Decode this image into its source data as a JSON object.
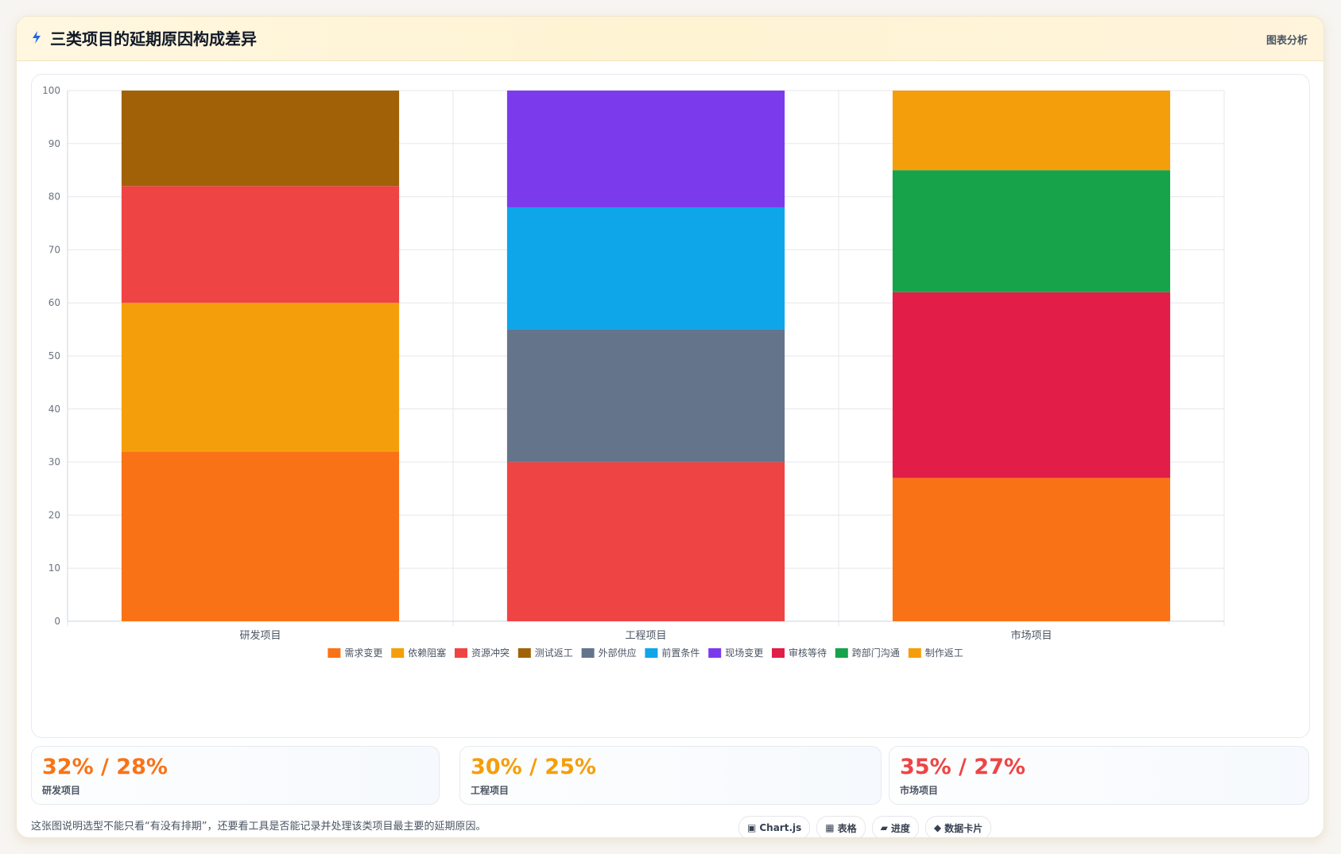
{
  "header": {
    "title_icon": "lightning-icon",
    "title": "三类项目的延期原因构成差异",
    "link_label": "图表分析"
  },
  "chart_data": {
    "type": "bar",
    "stacked": true,
    "categories": [
      "研发项目",
      "工程项目",
      "市场项目"
    ],
    "ylim": [
      0,
      100
    ],
    "yticks": [
      0,
      10,
      20,
      30,
      40,
      50,
      60,
      70,
      80,
      90,
      100
    ],
    "grid": true,
    "legend_position": "bottom",
    "series": [
      {
        "name": "需求变更",
        "color": "#f97316",
        "values": [
          32,
          0,
          27
        ]
      },
      {
        "name": "依赖阻塞",
        "color": "#f59e0b",
        "values": [
          28,
          0,
          0
        ]
      },
      {
        "name": "资源冲突",
        "color": "#ef4444",
        "values": [
          22,
          30,
          0
        ]
      },
      {
        "name": "测试返工",
        "color": "#a16207",
        "values": [
          18,
          0,
          0
        ]
      },
      {
        "name": "外部供应",
        "color": "#64748b",
        "values": [
          0,
          25,
          0
        ]
      },
      {
        "name": "前置条件",
        "color": "#0ea5e9",
        "values": [
          0,
          23,
          0
        ]
      },
      {
        "name": "现场变更",
        "color": "#7c3aed",
        "values": [
          0,
          22,
          0
        ]
      },
      {
        "name": "审核等待",
        "color": "#e11d48",
        "values": [
          0,
          0,
          35
        ]
      },
      {
        "name": "跨部门沟通",
        "color": "#16a34a",
        "values": [
          0,
          0,
          23
        ]
      },
      {
        "name": "制作返工",
        "color": "#f59e0b",
        "values": [
          0,
          0,
          15
        ]
      }
    ]
  },
  "stats": [
    {
      "value": "32% / 28%",
      "label": "研发项目",
      "color": "#f97316"
    },
    {
      "value": "30% / 25%",
      "label": "工程项目",
      "color": "#f59e0b"
    },
    {
      "value": "35% / 27%",
      "label": "市场项目",
      "color": "#ef4444"
    }
  ],
  "note": "这张图说明选型不能只看“有没有排期”，还要看工具是否能记录并处理该类项目最主要的延期原因。",
  "tags": [
    {
      "icon": "window-icon",
      "glyph": "▣",
      "label": "Chart.js"
    },
    {
      "icon": "table-icon",
      "glyph": "▦",
      "label": "表格"
    },
    {
      "icon": "progress-icon",
      "glyph": "▰",
      "label": "进度"
    },
    {
      "icon": "diamond-icon",
      "glyph": "◆",
      "label": "数据卡片"
    }
  ]
}
